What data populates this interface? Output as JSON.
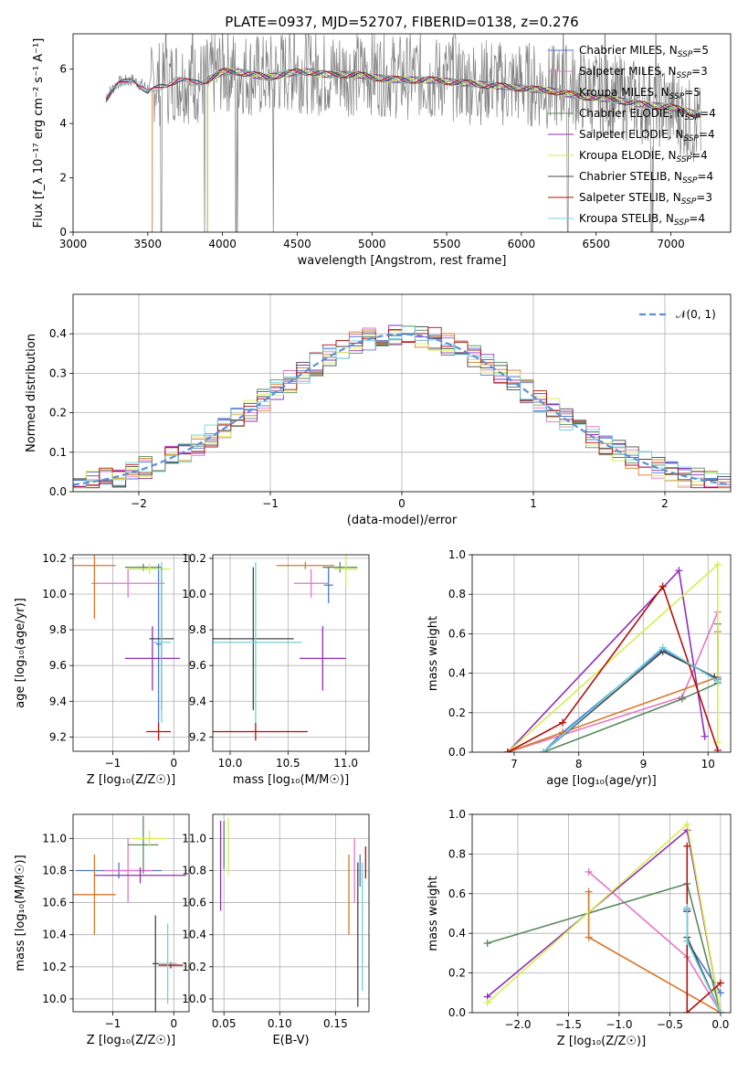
{
  "title": "PLATE=0937, MJD=52707, FIBERID=0138, z=0.276",
  "colors": {
    "chabrier_miles": "#4e79d6",
    "salpeter_miles": "#e377c2",
    "kroupa_miles": "#d9772a",
    "chabrier_elodie": "#5b8a5f",
    "salpeter_elodie": "#8f2fb5",
    "kroupa_elodie": "#d4ef4e",
    "chabrier_stelib": "#454545",
    "salpeter_stelib": "#b30f0f",
    "kroupa_stelib": "#6fd3dc",
    "data": "#808080",
    "normal": "#5b8fd8"
  },
  "chart_data": [
    {
      "id": "spectrum",
      "type": "line",
      "xlabel": "wavelength [Angstrom, rest frame]",
      "ylabel": "Flux [f_λ 10⁻¹⁷ erg cm⁻² s⁻¹ A⁻¹]",
      "xlim": [
        3000,
        7400
      ],
      "ylim": [
        0,
        7.3
      ],
      "xticks": [
        3000,
        3500,
        4000,
        4500,
        5000,
        5500,
        6000,
        6500,
        7000
      ],
      "yticks": [
        0,
        2,
        4,
        6
      ],
      "legend_position": "upper right",
      "legend": [
        {
          "model": "Chabrier MILES",
          "n": "5",
          "color_key": "chabrier_miles"
        },
        {
          "model": "Salpeter MILES",
          "n": "3",
          "color_key": "salpeter_miles"
        },
        {
          "model": "Kroupa MILES",
          "n": "5",
          "color_key": "kroupa_miles"
        },
        {
          "model": "Chabrier ELODIE",
          "n": "4",
          "color_key": "chabrier_elodie"
        },
        {
          "model": "Salpeter ELODIE",
          "n": "4",
          "color_key": "salpeter_elodie"
        },
        {
          "model": "Kroupa ELODIE",
          "n": "4",
          "color_key": "kroupa_elodie"
        },
        {
          "model": "Chabrier STELIB",
          "n": "4",
          "color_key": "chabrier_stelib"
        },
        {
          "model": "Salpeter STELIB",
          "n": "3",
          "color_key": "salpeter_stelib"
        },
        {
          "model": "Kroupa STELIB",
          "n": "4",
          "color_key": "kroupa_stelib"
        }
      ],
      "nssp_label": "N",
      "nssp_sub": "SSP",
      "data_x": [
        3220,
        3300,
        3400,
        3500,
        3550,
        3600,
        3700,
        3800,
        3900,
        4000,
        4100,
        4200,
        4300,
        4400,
        4500,
        4600,
        4700,
        4800,
        4900,
        5000,
        5100,
        5200,
        5300,
        5400,
        5500,
        5600,
        5700,
        5800,
        5900,
        6000,
        6100,
        6200,
        6300,
        6400,
        6500,
        6600,
        6700,
        6800,
        6900,
        7000,
        7100,
        7200
      ],
      "data_y": [
        5.0,
        5.5,
        5.6,
        5.3,
        5.6,
        5.4,
        5.7,
        5.5,
        5.6,
        6.0,
        5.9,
        5.8,
        5.7,
        5.9,
        6.0,
        5.9,
        5.8,
        5.9,
        5.8,
        5.9,
        5.8,
        5.7,
        5.8,
        5.6,
        5.7,
        5.6,
        5.5,
        5.6,
        5.4,
        5.5,
        5.4,
        5.3,
        5.4,
        5.2,
        5.1,
        5.0,
        4.9,
        4.8,
        4.7,
        4.6,
        4.2,
        3.8
      ],
      "model_x": [
        3220,
        3300,
        3400,
        3500,
        3600,
        3700,
        3800,
        3900,
        4000,
        4100,
        4200,
        4300,
        4400,
        4500,
        4600,
        4700,
        4800,
        4900,
        5000,
        5200,
        5400,
        5600,
        5800,
        6000,
        6200,
        6400,
        6600,
        6800,
        7000,
        7200
      ],
      "model_y": [
        4.9,
        5.4,
        5.7,
        5.1,
        5.4,
        5.6,
        5.5,
        5.6,
        5.9,
        5.9,
        5.8,
        5.7,
        5.8,
        5.9,
        5.9,
        5.8,
        5.8,
        5.8,
        5.7,
        5.6,
        5.6,
        5.5,
        5.4,
        5.3,
        5.2,
        5.0,
        4.9,
        4.7,
        4.6,
        4.3
      ]
    },
    {
      "id": "residuals",
      "type": "histogram",
      "xlabel": "(data-model)/error",
      "ylabel": "Normed distribution",
      "xlim": [
        -2.5,
        2.5
      ],
      "ylim": [
        0,
        0.5
      ],
      "xticks": [
        -2,
        -1,
        0,
        1,
        2
      ],
      "yticks": [
        0.0,
        0.1,
        0.2,
        0.3,
        0.4
      ],
      "legend": "𝒩(0, 1)",
      "bin_width": 0.1,
      "grid": true
    },
    {
      "id": "age_vs_Z",
      "type": "errorbar",
      "xlabel": "Z [log₁₀(Z/Z☉)]",
      "ylabel": "age  [log₁₀(age/yr)]",
      "xlim": [
        -1.65,
        0.25
      ],
      "ylim": [
        9.12,
        10.22
      ],
      "xticks": [
        -1,
        0
      ],
      "yticks": [
        9.2,
        9.4,
        9.6,
        9.8,
        10.0,
        10.2
      ],
      "points": [
        {
          "k": "chabrier_miles",
          "x": -0.25,
          "xerr": 0.04,
          "y": 9.72,
          "yerr": 0.45
        },
        {
          "k": "salpeter_miles",
          "x": -0.75,
          "xerr": 0.6,
          "y": 10.06,
          "yerr": 0.08
        },
        {
          "k": "kroupa_miles",
          "x": -1.3,
          "xerr": 0.35,
          "y": 10.16,
          "yerr": 0.3
        },
        {
          "k": "chabrier_elodie",
          "x": -0.5,
          "xerr": 0.3,
          "y": 10.15,
          "yerr": 0.02
        },
        {
          "k": "salpeter_elodie",
          "x": -0.35,
          "xerr": 0.45,
          "y": 9.64,
          "yerr": 0.18
        },
        {
          "k": "kroupa_elodie",
          "x": -0.4,
          "xerr": 0.35,
          "y": 10.14,
          "yerr": 0.03
        },
        {
          "k": "chabrier_stelib",
          "x": -0.2,
          "xerr": 0.2,
          "y": 9.75,
          "yerr": 0.4
        },
        {
          "k": "salpeter_stelib",
          "x": -0.25,
          "xerr": 0.2,
          "y": 9.23,
          "yerr": 0.05
        },
        {
          "k": "kroupa_stelib",
          "x": -0.2,
          "xerr": 0.15,
          "y": 9.73,
          "yerr": 0.45
        }
      ]
    },
    {
      "id": "age_vs_mass",
      "type": "errorbar",
      "xlabel": "mass [log₁₀(M/M☉)]",
      "ylabel": "",
      "xlim": [
        9.85,
        11.2
      ],
      "ylim": [
        9.12,
        10.22
      ],
      "xticks": [
        10.0,
        10.5,
        11.0
      ],
      "yticks": [
        9.2,
        9.4,
        9.6,
        9.8,
        10.0,
        10.2
      ],
      "points": [
        {
          "k": "chabrier_miles",
          "x": 10.85,
          "xerr": 0.04,
          "y": 10.05,
          "yerr": 0.1
        },
        {
          "k": "salpeter_miles",
          "x": 10.7,
          "xerr": 0.15,
          "y": 10.06,
          "yerr": 0.08
        },
        {
          "k": "kroupa_miles",
          "x": 10.65,
          "xerr": 0.25,
          "y": 10.16,
          "yerr": 0.02
        },
        {
          "k": "chabrier_elodie",
          "x": 10.95,
          "xerr": 0.15,
          "y": 10.15,
          "yerr": 0.03
        },
        {
          "k": "salpeter_elodie",
          "x": 10.8,
          "xerr": 0.2,
          "y": 9.64,
          "yerr": 0.18
        },
        {
          "k": "kroupa_elodie",
          "x": 11.0,
          "xerr": 0.1,
          "y": 10.14,
          "yerr": 0.1
        },
        {
          "k": "chabrier_stelib",
          "x": 10.2,
          "xerr": 0.35,
          "y": 9.75,
          "yerr": 0.4
        },
        {
          "k": "salpeter_stelib",
          "x": 10.22,
          "xerr": 0.45,
          "y": 9.23,
          "yerr": 0.05
        },
        {
          "k": "kroupa_stelib",
          "x": 10.22,
          "xerr": 0.4,
          "y": 9.73,
          "yerr": 0.45
        }
      ]
    },
    {
      "id": "weight_vs_age",
      "type": "line",
      "xlabel": "age  [log₁₀(age/yr)]",
      "ylabel": "mass weight",
      "xlim": [
        6.35,
        10.35
      ],
      "ylim": [
        0,
        1.0
      ],
      "xticks": [
        7,
        8,
        9,
        10
      ],
      "yticks": [
        0.0,
        0.2,
        0.4,
        0.6,
        0.8,
        1.0
      ],
      "series": [
        {
          "k": "chabrier_miles",
          "x": [
            7.45,
            7.75,
            9.3,
            10.15
          ],
          "y": [
            0.0,
            0.1,
            0.52,
            0.37
          ]
        },
        {
          "k": "salpeter_miles",
          "x": [
            6.9,
            9.6,
            10.15
          ],
          "y": [
            0.0,
            0.28,
            0.71
          ]
        },
        {
          "k": "kroupa_miles",
          "x": [
            6.9,
            7.75,
            10.15,
            10.15
          ],
          "y": [
            0.0,
            0.1,
            0.38,
            0.61
          ]
        },
        {
          "k": "chabrier_elodie",
          "x": [
            7.45,
            9.6,
            10.15,
            10.15
          ],
          "y": [
            0.0,
            0.27,
            0.35,
            0.65
          ]
        },
        {
          "k": "salpeter_elodie",
          "x": [
            6.9,
            9.55,
            9.95
          ],
          "y": [
            0.0,
            0.92,
            0.08
          ]
        },
        {
          "k": "kroupa_elodie",
          "x": [
            6.9,
            10.15,
            10.15
          ],
          "y": [
            0.0,
            0.95,
            0.05
          ]
        },
        {
          "k": "chabrier_stelib",
          "x": [
            7.45,
            9.3,
            10.1
          ],
          "y": [
            0.0,
            0.51,
            0.38
          ]
        },
        {
          "k": "salpeter_stelib",
          "x": [
            6.9,
            7.75,
            9.3,
            10.15
          ],
          "y": [
            0.0,
            0.15,
            0.84,
            0.01
          ]
        },
        {
          "k": "kroupa_stelib",
          "x": [
            7.45,
            9.3,
            10.15
          ],
          "y": [
            0.0,
            0.53,
            0.36
          ]
        }
      ]
    },
    {
      "id": "mass_vs_Z",
      "type": "errorbar",
      "xlabel": "Z [log₁₀(Z/Z☉)]",
      "ylabel": "mass [log₁₀(M/M☉)]",
      "xlim": [
        -1.65,
        0.25
      ],
      "ylim": [
        9.92,
        11.15
      ],
      "xticks": [
        -1,
        0
      ],
      "yticks": [
        10.0,
        10.2,
        10.4,
        10.6,
        10.8,
        11.0
      ],
      "points": [
        {
          "k": "chabrier_miles",
          "x": -0.9,
          "xerr": 0.7,
          "y": 10.8,
          "yerr": 0.05
        },
        {
          "k": "salpeter_miles",
          "x": -0.75,
          "xerr": 0.4,
          "y": 10.8,
          "yerr": 0.2
        },
        {
          "k": "kroupa_miles",
          "x": -1.3,
          "xerr": 0.35,
          "y": 10.65,
          "yerr": 0.25
        },
        {
          "k": "chabrier_elodie",
          "x": -0.5,
          "xerr": 0.25,
          "y": 10.96,
          "yerr": 0.18
        },
        {
          "k": "salpeter_elodie",
          "x": -0.55,
          "xerr": 0.75,
          "y": 10.77,
          "yerr": 0.05
        },
        {
          "k": "kroupa_elodie",
          "x": -0.4,
          "xerr": 0.3,
          "y": 11.0,
          "yerr": 0.05
        },
        {
          "k": "chabrier_stelib",
          "x": -0.3,
          "xerr": 0.05,
          "y": 10.22,
          "yerr": 0.3
        },
        {
          "k": "salpeter_stelib",
          "x": -0.05,
          "xerr": 0.2,
          "y": 10.21,
          "yerr": 0.02
        },
        {
          "k": "kroupa_stelib",
          "x": -0.1,
          "xerr": 0.15,
          "y": 10.22,
          "yerr": 0.25
        }
      ]
    },
    {
      "id": "mass_vs_ebv",
      "type": "errorbar",
      "xlabel": "E(B-V)",
      "ylabel": "",
      "xlim": [
        0.04,
        0.18
      ],
      "ylim": [
        9.92,
        11.15
      ],
      "xticks": [
        0.05,
        0.1,
        0.15
      ],
      "yticks": [
        10.0,
        10.2,
        10.4,
        10.6,
        10.8,
        11.0
      ],
      "points": [
        {
          "k": "chabrier_miles",
          "x": 0.172,
          "xerr": 0.0,
          "y": 10.8,
          "yerr": 0.1
        },
        {
          "k": "salpeter_miles",
          "x": 0.167,
          "xerr": 0.0,
          "y": 10.8,
          "yerr": 0.2
        },
        {
          "k": "kroupa_miles",
          "x": 0.162,
          "xerr": 0.0,
          "y": 10.65,
          "yerr": 0.25
        },
        {
          "k": "chabrier_elodie",
          "x": 0.05,
          "xerr": 0.0,
          "y": 10.96,
          "yerr": 0.15
        },
        {
          "k": "salpeter_elodie",
          "x": 0.047,
          "xerr": 0.0,
          "y": 10.83,
          "yerr": 0.28
        },
        {
          "k": "kroupa_elodie",
          "x": 0.054,
          "xerr": 0.0,
          "y": 10.95,
          "yerr": 0.18
        },
        {
          "k": "chabrier_stelib",
          "x": 0.17,
          "xerr": 0.0,
          "y": 10.4,
          "yerr": 0.45
        },
        {
          "k": "salpeter_stelib",
          "x": 0.177,
          "xerr": 0.0,
          "y": 10.85,
          "yerr": 0.1
        },
        {
          "k": "kroupa_stelib",
          "x": 0.174,
          "xerr": 0.0,
          "y": 10.45,
          "yerr": 0.4
        }
      ]
    },
    {
      "id": "weight_vs_Z",
      "type": "line",
      "xlabel": "Z [log₁₀(Z/Z☉)]",
      "ylabel": "mass weight",
      "xlim": [
        -2.45,
        0.1
      ],
      "ylim": [
        0,
        1.0
      ],
      "xticks": [
        -2.0,
        -1.5,
        -1.0,
        -0.5,
        0.0
      ],
      "yticks": [
        0.0,
        0.2,
        0.4,
        0.6,
        0.8,
        1.0
      ],
      "series": [
        {
          "k": "chabrier_miles",
          "x": [
            -0.33,
            -0.33,
            0.0
          ],
          "y": [
            0.52,
            0.36,
            0.1
          ]
        },
        {
          "k": "salpeter_miles",
          "x": [
            -1.3,
            -0.33,
            0.0
          ],
          "y": [
            0.71,
            0.28,
            0.0
          ]
        },
        {
          "k": "kroupa_miles",
          "x": [
            -1.3,
            -1.3,
            0.0,
            0.0
          ],
          "y": [
            0.61,
            0.38,
            0.0,
            0.0
          ]
        },
        {
          "k": "chabrier_elodie",
          "x": [
            -2.3,
            -0.33,
            0.0
          ],
          "y": [
            0.35,
            0.65,
            0.0
          ]
        },
        {
          "k": "salpeter_elodie",
          "x": [
            -2.3,
            -0.33,
            0.0
          ],
          "y": [
            0.08,
            0.92,
            0.0
          ]
        },
        {
          "k": "kroupa_elodie",
          "x": [
            -2.3,
            -0.33,
            0.0
          ],
          "y": [
            0.05,
            0.95,
            0.0
          ]
        },
        {
          "k": "chabrier_stelib",
          "x": [
            -0.33,
            -0.33,
            0.0
          ],
          "y": [
            0.51,
            0.38,
            0.0
          ]
        },
        {
          "k": "salpeter_stelib",
          "x": [
            -0.33,
            -0.33,
            0.0
          ],
          "y": [
            0.84,
            0.0,
            0.15
          ]
        },
        {
          "k": "kroupa_stelib",
          "x": [
            -0.33,
            -0.33,
            0.0
          ],
          "y": [
            0.53,
            0.36,
            0.0
          ]
        }
      ]
    }
  ]
}
